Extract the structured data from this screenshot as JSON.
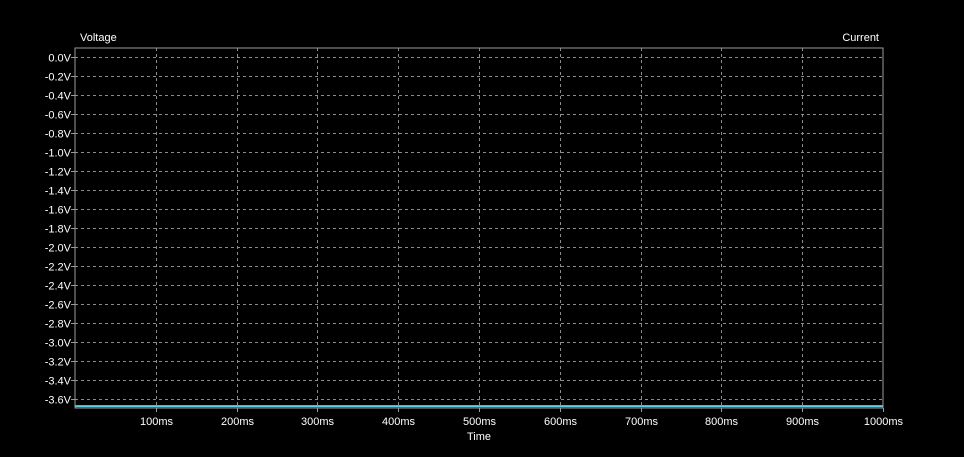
{
  "chart_data": {
    "type": "line",
    "ylabel": "Voltage",
    "y2label": "Current",
    "xlabel": "Time",
    "xlim": [
      0,
      1000
    ],
    "ylim": [
      -3.7,
      0.1
    ],
    "x_ticks": [
      100,
      200,
      300,
      400,
      500,
      600,
      700,
      800,
      900,
      1000
    ],
    "x_tick_labels": [
      "100ms",
      "200ms",
      "300ms",
      "400ms",
      "500ms",
      "600ms",
      "700ms",
      "800ms",
      "900ms",
      "1000ms"
    ],
    "y_ticks": [
      0.0,
      -0.2,
      -0.4,
      -0.6,
      -0.8,
      -1.0,
      -1.2,
      -1.4,
      -1.6,
      -1.8,
      -2.0,
      -2.2,
      -2.4,
      -2.6,
      -2.8,
      -3.0,
      -3.2,
      -3.4,
      -3.6
    ],
    "y_tick_labels": [
      "0.0V",
      "-0.2V",
      "-0.4V",
      "-0.6V",
      "-0.8V",
      "-1.0V",
      "-1.2V",
      "-1.4V",
      "-1.6V",
      "-1.8V",
      "-2.0V",
      "-2.2V",
      "-2.4V",
      "-2.6V",
      "-2.8V",
      "-3.0V",
      "-3.2V",
      "-3.4V",
      "-3.6V"
    ],
    "grid": true,
    "series": [
      {
        "color": "#5ecde8",
        "x": [
          0,
          1000
        ],
        "y": [
          -3.68,
          -3.68
        ]
      }
    ]
  },
  "colors": {
    "background": "#000000",
    "frame": "#9a9a9a",
    "grid": "#8c8c8c",
    "text": "#ffffff"
  }
}
